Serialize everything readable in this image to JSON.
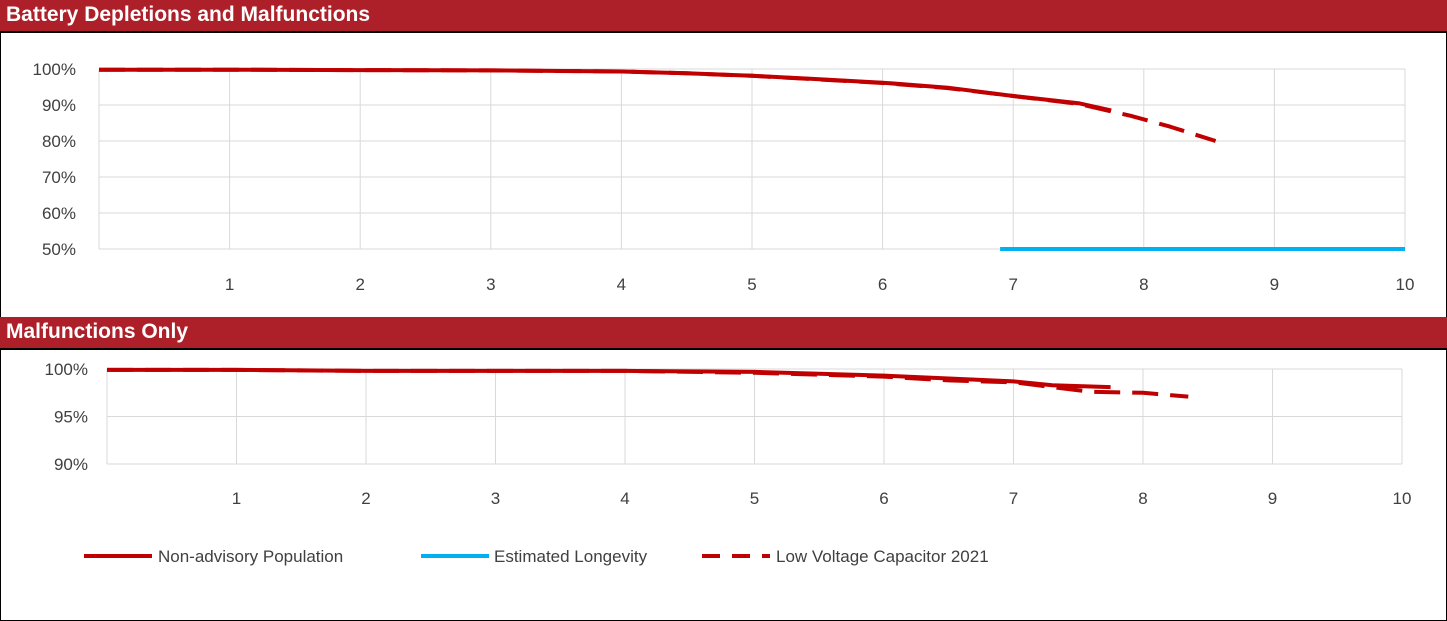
{
  "chart_data": [
    {
      "type": "line",
      "title": "Battery Depletions and Malfunctions",
      "xlabel": "",
      "ylabel": "",
      "xlim": [
        0,
        10
      ],
      "ylim": [
        0.5,
        1.0
      ],
      "x_ticks": [
        "1",
        "2",
        "3",
        "4",
        "5",
        "6",
        "7",
        "8",
        "9",
        "10"
      ],
      "y_ticks": [
        "100%",
        "90%",
        "80%",
        "70%",
        "60%",
        "50%"
      ],
      "y_tick_values": [
        1.0,
        0.9,
        0.8,
        0.7,
        0.6,
        0.5
      ],
      "grid": true,
      "series": [
        {
          "name": "Non-advisory Population",
          "x": [
            0,
            1,
            2,
            3,
            4,
            4.5,
            5,
            5.5,
            6,
            6.5,
            7,
            7.5,
            7.75
          ],
          "y": [
            0.998,
            0.998,
            0.997,
            0.996,
            0.993,
            0.988,
            0.981,
            0.972,
            0.962,
            0.948,
            0.925,
            0.905,
            0.885
          ]
        },
        {
          "name": "Estimated Longevity",
          "x": [
            6.9,
            10
          ],
          "y": [
            0.5,
            0.5
          ]
        },
        {
          "name": "Low Voltage Capacitor 2021",
          "x": [
            0,
            1,
            2,
            3,
            4,
            4.5,
            5,
            5.5,
            6,
            6.5,
            7,
            7.5,
            7.9,
            8.2,
            8.55
          ],
          "y": [
            0.998,
            0.998,
            0.997,
            0.996,
            0.993,
            0.988,
            0.981,
            0.971,
            0.961,
            0.947,
            0.925,
            0.903,
            0.87,
            0.84,
            0.8
          ]
        }
      ]
    },
    {
      "type": "line",
      "title": "Malfunctions Only",
      "xlabel": "",
      "ylabel": "",
      "xlim": [
        0,
        10
      ],
      "ylim": [
        0.9,
        1.0
      ],
      "x_ticks": [
        "1",
        "2",
        "3",
        "4",
        "5",
        "6",
        "7",
        "8",
        "9",
        "10"
      ],
      "y_ticks": [
        "100%",
        "95%",
        "90%"
      ],
      "y_tick_values": [
        1.0,
        0.95,
        0.9
      ],
      "grid": true,
      "series": [
        {
          "name": "Non-advisory Population",
          "x": [
            0,
            1,
            2,
            3,
            4,
            5,
            5.5,
            6,
            6.5,
            7,
            7.3,
            7.75
          ],
          "y": [
            0.999,
            0.999,
            0.998,
            0.998,
            0.998,
            0.997,
            0.995,
            0.993,
            0.99,
            0.987,
            0.983,
            0.981
          ]
        },
        {
          "name": "Low Voltage Capacitor 2021",
          "x": [
            0,
            1,
            2,
            3,
            4,
            5,
            5.5,
            6,
            6.5,
            7,
            7.3,
            7.6,
            8.0,
            8.35
          ],
          "y": [
            0.999,
            0.999,
            0.998,
            0.998,
            0.998,
            0.996,
            0.994,
            0.992,
            0.988,
            0.986,
            0.981,
            0.976,
            0.975,
            0.971
          ]
        }
      ]
    }
  ],
  "legend": {
    "placement": "bottom-left",
    "items": [
      {
        "label": "Non-advisory Population",
        "color": "#c00000",
        "style": "solid"
      },
      {
        "label": "Estimated Longevity",
        "color": "#00b0f0",
        "style": "solid"
      },
      {
        "label": "Low Voltage Capacitor 2021",
        "color": "#c00000",
        "style": "dashed"
      }
    ]
  },
  "colors": {
    "header_bg": "#ad2029",
    "header_text": "#ffffff",
    "series_red": "#c00000",
    "series_blue": "#00b0f0",
    "grid": "#d9d9d9"
  }
}
